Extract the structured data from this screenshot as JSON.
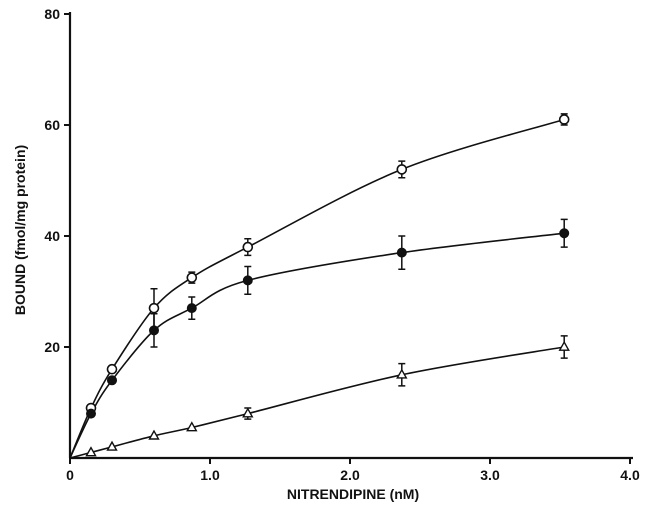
{
  "chart_data": {
    "type": "scatter",
    "title": "",
    "xlabel": "NITRENDIPINE (nM)",
    "ylabel": "BOUND (fmol/mg protein)",
    "xlim": [
      0,
      4.0
    ],
    "ylim": [
      0,
      80
    ],
    "x_ticks": [
      0,
      1.0,
      2.0,
      3.0,
      4.0
    ],
    "x_tick_labels": [
      "0",
      "1.0",
      "2.0",
      "3.0",
      "4.0"
    ],
    "y_ticks": [
      20,
      40,
      60,
      80
    ],
    "y_tick_labels": [
      "20",
      "40",
      "60",
      "80"
    ],
    "grid": false,
    "legend": "none",
    "series": [
      {
        "marker": "open-circle",
        "x": [
          0.15,
          0.3,
          0.6,
          0.87,
          1.27,
          2.37,
          3.53
        ],
        "y": [
          9,
          16,
          27,
          32.5,
          38,
          52,
          61
        ],
        "err": [
          0,
          0,
          3.5,
          1.0,
          1.5,
          1.5,
          1.0
        ]
      },
      {
        "marker": "filled-circle",
        "x": [
          0.15,
          0.3,
          0.6,
          0.87,
          1.27,
          2.37,
          3.53
        ],
        "y": [
          8,
          14,
          23,
          27,
          32,
          37,
          40.5
        ],
        "err": [
          0,
          0,
          3.0,
          2.0,
          2.5,
          3.0,
          2.5
        ]
      },
      {
        "marker": "open-triangle",
        "x": [
          0.15,
          0.3,
          0.6,
          0.87,
          1.27,
          2.37,
          3.53
        ],
        "y": [
          1,
          2,
          4,
          5.5,
          8,
          15,
          20
        ],
        "err": [
          0,
          0,
          0,
          0,
          1.0,
          2.0,
          2.0
        ]
      }
    ]
  }
}
